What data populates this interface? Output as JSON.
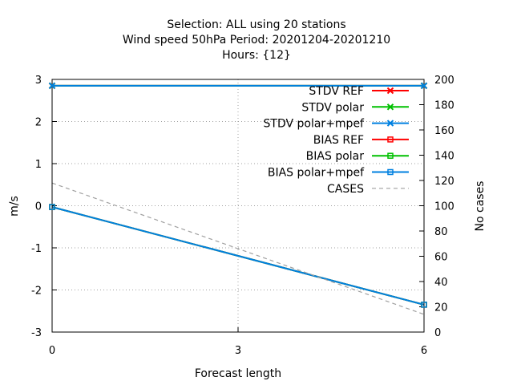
{
  "chart_data": {
    "type": "line",
    "title_lines": [
      "Selection: ALL using    20 stations",
      "Wind speed 50hPa   Period: 20201204-20201210",
      "Hours: {12}"
    ],
    "xlabel": "Forecast length",
    "ylabel": "m/s",
    "y2label": "No cases",
    "xlim": [
      0,
      6
    ],
    "ylim": [
      -3,
      3
    ],
    "y2lim": [
      0,
      200
    ],
    "xticks": [
      0,
      3,
      6
    ],
    "yticks": [
      -3,
      -2,
      -1,
      0,
      1,
      2,
      3
    ],
    "y2ticks": [
      0,
      20,
      40,
      60,
      80,
      100,
      120,
      140,
      160,
      180,
      200
    ],
    "grid": true,
    "legend_position": "top-right",
    "x": [
      0,
      6
    ],
    "series": [
      {
        "name": "STDV REF",
        "axis": "y",
        "values": [
          2.85,
          2.85
        ],
        "color": "#ff0000",
        "marker": "x",
        "dash": "solid"
      },
      {
        "name": "STDV polar",
        "axis": "y",
        "values": [
          2.85,
          2.85
        ],
        "color": "#00c000",
        "marker": "x",
        "dash": "solid"
      },
      {
        "name": "STDV polar+mpef",
        "axis": "y",
        "values": [
          2.85,
          2.85
        ],
        "color": "#0080e0",
        "marker": "x",
        "dash": "solid"
      },
      {
        "name": "BIAS REF",
        "axis": "y",
        "values": [
          -0.03,
          -2.35
        ],
        "color": "#ff0000",
        "marker": "square",
        "dash": "solid"
      },
      {
        "name": "BIAS polar",
        "axis": "y",
        "values": [
          -0.03,
          -2.35
        ],
        "color": "#00c000",
        "marker": "square",
        "dash": "solid"
      },
      {
        "name": "BIAS polar+mpef",
        "axis": "y",
        "values": [
          -0.03,
          -2.35
        ],
        "color": "#0080e0",
        "marker": "square",
        "dash": "solid"
      },
      {
        "name": "CASES",
        "axis": "y2",
        "values": [
          118,
          14
        ],
        "color": "#a0a0a0",
        "marker": "none",
        "dash": "dashed"
      }
    ]
  }
}
